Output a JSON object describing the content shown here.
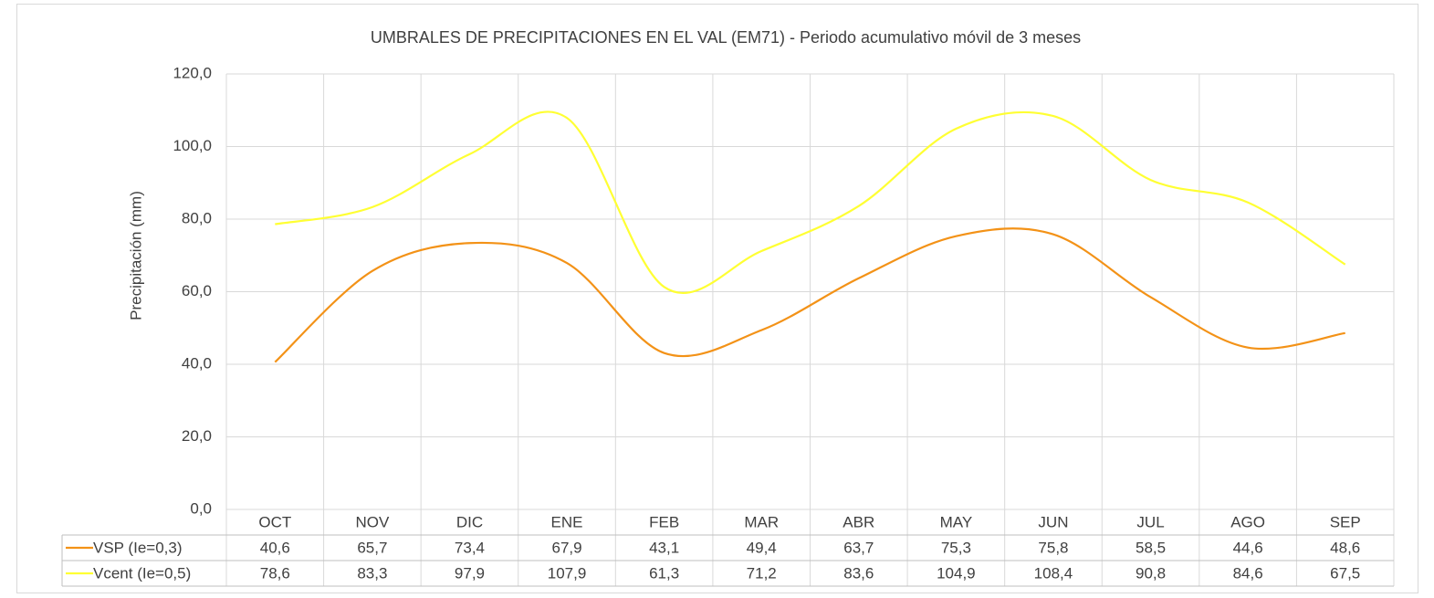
{
  "chart_data": {
    "type": "line",
    "title": "UMBRALES DE PRECIPITACIONES EN EL VAL (EM71) - Periodo acumulativo móvil de 3 meses",
    "y_label": "Precipitación (mm)",
    "categories": [
      "OCT",
      "NOV",
      "DIC",
      "ENE",
      "FEB",
      "MAR",
      "ABR",
      "MAY",
      "JUN",
      "JUL",
      "AGO",
      "SEP"
    ],
    "series": [
      {
        "name": "VSP (Ie=0,3)",
        "color": "#f39217",
        "values": [
          40.6,
          65.7,
          73.4,
          67.9,
          43.1,
          49.4,
          63.7,
          75.3,
          75.8,
          58.5,
          44.6,
          48.6
        ],
        "value_labels": [
          "40,6",
          "65,7",
          "73,4",
          "67,9",
          "43,1",
          "49,4",
          "63,7",
          "75,3",
          "75,8",
          "58,5",
          "44,6",
          "48,6"
        ]
      },
      {
        "name": "Vcent (Ie=0,5)",
        "color": "#ffff33",
        "values": [
          78.6,
          83.3,
          97.9,
          107.9,
          61.3,
          71.2,
          83.6,
          104.9,
          108.4,
          90.8,
          84.6,
          67.5
        ],
        "value_labels": [
          "78,6",
          "83,3",
          "97,9",
          "107,9",
          "61,3",
          "71,2",
          "83,6",
          "104,9",
          "108,4",
          "90,8",
          "84,6",
          "67,5"
        ]
      }
    ],
    "ylim": [
      0,
      120
    ],
    "yticks": [
      {
        "value": 0,
        "label": "0,0"
      },
      {
        "value": 20,
        "label": "20,0"
      },
      {
        "value": 40,
        "label": "40,0"
      },
      {
        "value": 60,
        "label": "60,0"
      },
      {
        "value": 80,
        "label": "80,0"
      },
      {
        "value": 100,
        "label": "100,0"
      },
      {
        "value": 120,
        "label": "120,0"
      }
    ],
    "grid": true,
    "smooth": true
  }
}
